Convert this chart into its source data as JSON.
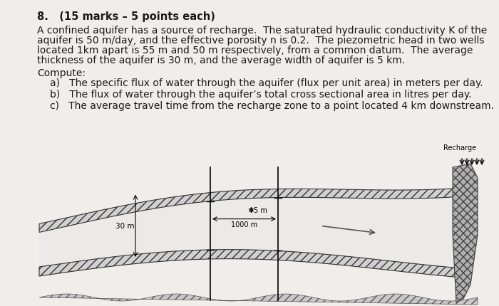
{
  "title_line": "8.   (15 marks – 5 points each)",
  "paragraph": "A confined aquifer has a source of recharge.  The saturated hydraulic conductivity K of the\naquifer is 50 m/day, and the effective porosity n is 0.2.  The piezometric head in two wells\nlocated 1km apart is 55 m and 50 m respectively, from a common datum.  The average\nthickness of the aquifer is 30 m, and the average width of aquifer is 5 km.",
  "compute_label": "Compute:",
  "items": [
    "a)   The specific flux of water through the aquifer (flux per unit area) in meters per day.",
    "b)   The flux of water through the aquifer’s total cross sectional area in litres per day.",
    "c)   The average travel time from the recharge zone to a point located 4 km downstream."
  ],
  "bg_color": "#f0eeea",
  "text_color": "#1a1a1a",
  "font_size_title": 10.5,
  "font_size_body": 10.5
}
